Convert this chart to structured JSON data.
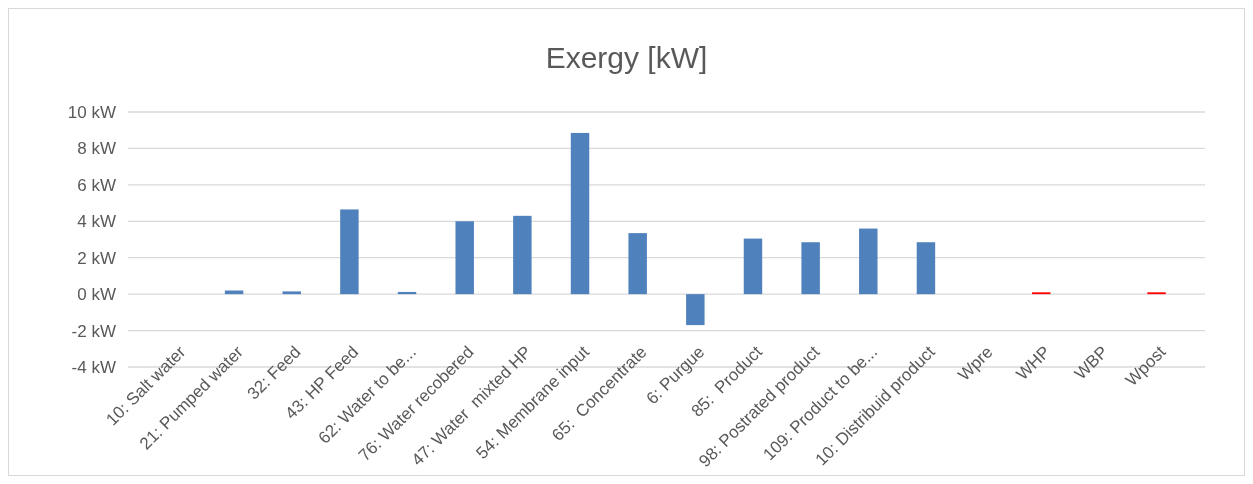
{
  "chart_data": {
    "type": "bar",
    "title": "Exergy [kW]",
    "categories": [
      "10: Salt water",
      "21: Pumped water",
      "32: Feed",
      "43: HP Feed",
      "62: Water to be...",
      "76: Water recobered",
      "47: Water  mixted HP",
      "54: Membrane input",
      "65:  Concentrate",
      "6: Purgue",
      "85:  Product",
      "98: Postrated product",
      "109: Product to be...",
      "10: Distribuid product",
      "Wpre",
      "WHP",
      "WBP",
      "Wpost"
    ],
    "values": [
      0,
      0.2,
      0.15,
      4.65,
      0.12,
      4.0,
      4.3,
      8.85,
      3.35,
      -1.7,
      3.05,
      2.85,
      3.6,
      2.85,
      0,
      0.1,
      0,
      0.1
    ],
    "colors": [
      "#4f81bd",
      "#4f81bd",
      "#4f81bd",
      "#4f81bd",
      "#4f81bd",
      "#4f81bd",
      "#4f81bd",
      "#4f81bd",
      "#4f81bd",
      "#4f81bd",
      "#4f81bd",
      "#4f81bd",
      "#4f81bd",
      "#4f81bd",
      "#4f81bd",
      "#ff0000",
      "#4f81bd",
      "#ff0000"
    ],
    "ylim": [
      -4,
      10
    ],
    "yticks": [
      {
        "value": -4,
        "label": "-4 kW"
      },
      {
        "value": -2,
        "label": "-2 kW"
      },
      {
        "value": 0,
        "label": "0 kW"
      },
      {
        "value": 2,
        "label": "2 kW"
      },
      {
        "value": 4,
        "label": "4 kW"
      },
      {
        "value": 6,
        "label": "6 kW"
      },
      {
        "value": 8,
        "label": "8 kW"
      },
      {
        "value": 10,
        "label": "10 kW"
      }
    ],
    "grid": "y"
  }
}
